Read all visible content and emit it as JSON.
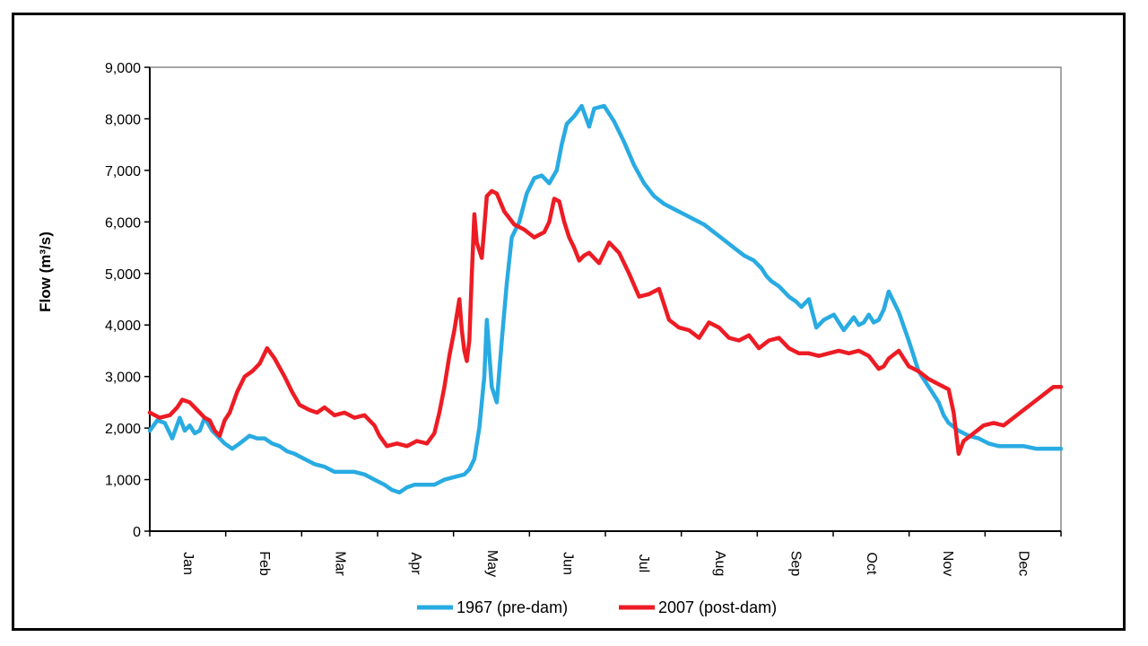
{
  "chart_data": {
    "type": "line",
    "ylabel": "Flow (m³/s)",
    "xlabel": "",
    "ylim": [
      0,
      9000
    ],
    "yticks": [
      0,
      1000,
      2000,
      3000,
      4000,
      5000,
      6000,
      7000,
      8000,
      9000
    ],
    "ytick_labels": [
      "0",
      "1,000",
      "2,000",
      "3,000",
      "4,000",
      "5,000",
      "6,000",
      "7,000",
      "8,000",
      "9,000"
    ],
    "xlim": [
      0,
      365
    ],
    "categories": [
      "Jan",
      "Feb",
      "Mar",
      "Apr",
      "May",
      "Jun",
      "Jul",
      "Aug",
      "Sep",
      "Oct",
      "Nov",
      "Dec"
    ],
    "grid": false,
    "legend_position": "bottom",
    "series": [
      {
        "name": "1967 (pre-dam)",
        "color": "#29ABE2",
        "x": [
          0,
          3,
          6,
          9,
          12,
          14,
          16,
          18,
          20,
          22,
          25,
          28,
          30,
          33,
          36,
          40,
          43,
          46,
          49,
          52,
          55,
          58,
          62,
          66,
          70,
          74,
          78,
          82,
          86,
          90,
          94,
          97,
          100,
          103,
          106,
          110,
          114,
          118,
          122,
          126,
          128,
          130,
          131,
          132,
          133,
          134,
          135,
          137,
          139,
          141,
          143,
          145,
          148,
          151,
          154,
          157,
          160,
          163,
          165,
          167,
          170,
          173,
          176,
          178,
          182,
          186,
          190,
          194,
          198,
          202,
          206,
          210,
          214,
          218,
          222,
          226,
          230,
          234,
          238,
          242,
          245,
          247,
          249,
          252,
          256,
          259,
          261,
          264,
          267,
          270,
          274,
          278,
          282,
          284,
          286,
          288,
          290,
          292,
          294,
          296,
          300,
          304,
          308,
          312,
          316,
          318,
          320,
          324,
          328,
          332,
          336,
          340,
          345,
          350,
          355,
          360,
          365
        ],
        "values": [
          1950,
          2150,
          2100,
          1800,
          2200,
          1950,
          2050,
          1900,
          1950,
          2200,
          1950,
          1800,
          1700,
          1600,
          1700,
          1850,
          1800,
          1800,
          1700,
          1650,
          1550,
          1500,
          1400,
          1300,
          1250,
          1150,
          1150,
          1150,
          1100,
          1000,
          900,
          800,
          750,
          850,
          900,
          900,
          900,
          1000,
          1050,
          1100,
          1200,
          1400,
          1700,
          2000,
          2500,
          3000,
          4100,
          2800,
          2500,
          3700,
          4800,
          5700,
          6000,
          6550,
          6850,
          6900,
          6750,
          7000,
          7500,
          7900,
          8050,
          8250,
          7850,
          8200,
          8250,
          7950,
          7550,
          7100,
          6750,
          6500,
          6350,
          6250,
          6150,
          6050,
          5950,
          5800,
          5650,
          5500,
          5350,
          5250,
          5100,
          4950,
          4850,
          4750,
          4550,
          4450,
          4350,
          4500,
          3950,
          4100,
          4200,
          3900,
          4150,
          4000,
          4050,
          4200,
          4050,
          4100,
          4300,
          4650,
          4250,
          3700,
          3100,
          2800,
          2500,
          2250,
          2100,
          1950,
          1850,
          1800,
          1700,
          1650,
          1650,
          1650,
          1600,
          1600,
          1600
        ]
      },
      {
        "name": "2007 (post-dam)",
        "color": "#ED1C24",
        "x": [
          0,
          4,
          8,
          11,
          13,
          16,
          19,
          22,
          24,
          26,
          28,
          30,
          32,
          35,
          38,
          41,
          44,
          47,
          50,
          54,
          57,
          60,
          64,
          67,
          70,
          74,
          78,
          82,
          86,
          90,
          92,
          95,
          99,
          103,
          107,
          111,
          114,
          116,
          118,
          120,
          122,
          124,
          125,
          126,
          127,
          128,
          129,
          130,
          131,
          133,
          135,
          137,
          139,
          142,
          146,
          150,
          154,
          158,
          160,
          162,
          164,
          166,
          168,
          170,
          172,
          174,
          176,
          180,
          184,
          188,
          192,
          196,
          200,
          204,
          206,
          208,
          212,
          216,
          220,
          224,
          228,
          232,
          236,
          240,
          244,
          248,
          252,
          256,
          260,
          264,
          268,
          272,
          276,
          280,
          284,
          288,
          292,
          294,
          296,
          300,
          304,
          308,
          312,
          316,
          320,
          322,
          324,
          326,
          330,
          334,
          338,
          342,
          346,
          350,
          354,
          358,
          362,
          365
        ],
        "values": [
          2300,
          2200,
          2250,
          2400,
          2550,
          2500,
          2350,
          2200,
          2150,
          1950,
          1850,
          2150,
          2300,
          2700,
          3000,
          3100,
          3250,
          3550,
          3350,
          3000,
          2700,
          2450,
          2350,
          2300,
          2400,
          2250,
          2300,
          2200,
          2250,
          2050,
          1850,
          1650,
          1700,
          1650,
          1750,
          1700,
          1900,
          2300,
          2800,
          3400,
          3900,
          4500,
          3900,
          3500,
          3300,
          3700,
          5000,
          6150,
          5600,
          5300,
          6500,
          6600,
          6550,
          6200,
          5950,
          5850,
          5700,
          5800,
          6000,
          6450,
          6400,
          6000,
          5700,
          5500,
          5250,
          5350,
          5400,
          5200,
          5600,
          5400,
          5000,
          4550,
          4600,
          4700,
          4400,
          4100,
          3950,
          3900,
          3750,
          4050,
          3950,
          3750,
          3700,
          3800,
          3550,
          3700,
          3750,
          3550,
          3450,
          3450,
          3400,
          3450,
          3500,
          3450,
          3500,
          3400,
          3150,
          3200,
          3350,
          3500,
          3200,
          3100,
          2950,
          2850,
          2750,
          2300,
          1500,
          1750,
          1900,
          2050,
          2100,
          2050,
          2200,
          2350,
          2500,
          2650,
          2800,
          2800
        ]
      }
    ]
  }
}
